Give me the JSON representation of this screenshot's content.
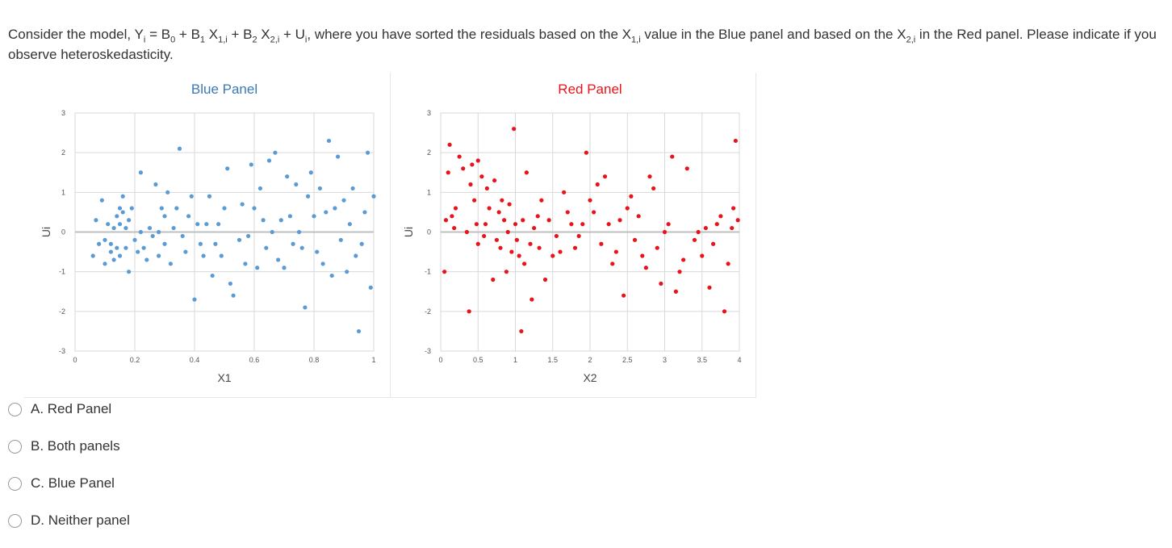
{
  "question": {
    "part1": "Consider the model, Y",
    "sub_i": "i",
    "part2": " = B",
    "sub_0": "0",
    "part3": " + B",
    "sub_1": "1",
    "part4": " X",
    "sub_1i": "1,i",
    "part5": " + B",
    "sub_2": "2",
    "part6": " X",
    "sub_2i": "2,i",
    "part7": " + U",
    "sub_i2": "i",
    "part8": ", where you have sorted the residuals based on the X",
    "sub_1i_b": "1,i",
    "part9": " value in the Blue panel and based on the X",
    "sub_2i_b": "2,i",
    "part10": " in the Red panel. Please indicate if you observe heteroskedasticity."
  },
  "options": [
    {
      "label": "A. Red Panel"
    },
    {
      "label": "B. Both panels"
    },
    {
      "label": "C. Blue Panel"
    },
    {
      "label": "D. Neither panel"
    }
  ],
  "colors": {
    "blue": "#5b9bd5",
    "red": "#e8131b",
    "blue_title": "#3c78b4",
    "red_title": "#e8131b",
    "grid": "#d9d9d9",
    "zero_line": "#bfbfbf"
  },
  "chart_data": [
    {
      "type": "scatter",
      "title": "Blue Panel",
      "xlabel": "X1",
      "ylabel": "Ui",
      "xlim": [
        0,
        1
      ],
      "ylim": [
        -3,
        3
      ],
      "xticks": [
        "0",
        "0.2",
        "0.4",
        "0.6",
        "0.8",
        "1"
      ],
      "yticks": [
        "-3",
        "-2",
        "-1",
        "0",
        "1",
        "2",
        "3"
      ],
      "grid": true,
      "color": "#5b9bd5",
      "x": [
        0.06,
        0.07,
        0.08,
        0.09,
        0.1,
        0.1,
        0.11,
        0.12,
        0.12,
        0.13,
        0.13,
        0.14,
        0.14,
        0.15,
        0.15,
        0.15,
        0.16,
        0.16,
        0.17,
        0.17,
        0.18,
        0.18,
        0.19,
        0.2,
        0.21,
        0.22,
        0.22,
        0.23,
        0.24,
        0.25,
        0.26,
        0.27,
        0.28,
        0.28,
        0.29,
        0.3,
        0.3,
        0.31,
        0.32,
        0.33,
        0.34,
        0.35,
        0.36,
        0.37,
        0.38,
        0.39,
        0.4,
        0.41,
        0.42,
        0.43,
        0.44,
        0.45,
        0.46,
        0.47,
        0.48,
        0.49,
        0.5,
        0.51,
        0.52,
        0.53,
        0.55,
        0.56,
        0.57,
        0.58,
        0.59,
        0.6,
        0.61,
        0.62,
        0.63,
        0.64,
        0.65,
        0.66,
        0.67,
        0.68,
        0.69,
        0.7,
        0.71,
        0.72,
        0.73,
        0.74,
        0.75,
        0.76,
        0.77,
        0.78,
        0.79,
        0.8,
        0.81,
        0.82,
        0.83,
        0.84,
        0.85,
        0.86,
        0.87,
        0.88,
        0.89,
        0.9,
        0.91,
        0.92,
        0.93,
        0.94,
        0.95,
        0.96,
        0.97,
        0.98,
        0.99,
        1.0
      ],
      "y": [
        -0.6,
        0.3,
        -0.3,
        0.8,
        -0.2,
        -0.8,
        0.2,
        -0.5,
        -0.3,
        0.1,
        -0.7,
        0.4,
        -0.4,
        0.2,
        0.6,
        -0.6,
        0.9,
        0.5,
        -0.4,
        0.1,
        0.3,
        -1.0,
        0.6,
        -0.2,
        -0.5,
        1.5,
        0.0,
        -0.4,
        -0.7,
        0.1,
        -0.1,
        1.2,
        -0.6,
        0.0,
        0.6,
        0.4,
        -0.3,
        1.0,
        -0.8,
        0.1,
        0.6,
        2.1,
        -0.1,
        -0.5,
        0.4,
        0.9,
        -1.7,
        0.2,
        -0.3,
        -0.6,
        0.2,
        0.9,
        -1.1,
        -0.3,
        0.2,
        -0.6,
        0.6,
        1.6,
        -1.3,
        -1.6,
        -0.2,
        0.7,
        -0.8,
        -0.1,
        1.7,
        0.6,
        -0.9,
        1.1,
        0.3,
        -0.4,
        1.8,
        0.0,
        2.0,
        -0.7,
        0.3,
        -0.9,
        1.4,
        0.4,
        -0.3,
        1.2,
        0.0,
        -0.4,
        -1.9,
        0.9,
        1.5,
        0.4,
        -0.5,
        1.1,
        -0.8,
        0.5,
        2.3,
        -1.1,
        0.6,
        1.9,
        -0.2,
        0.8,
        -1.0,
        0.2,
        1.1,
        -0.6,
        -2.5,
        -0.3,
        0.5,
        2.0,
        -1.4,
        0.9
      ]
    },
    {
      "type": "scatter",
      "title": "Red Panel",
      "xlabel": "X2",
      "ylabel": "Ui",
      "xlim": [
        0,
        4
      ],
      "ylim": [
        -3,
        3
      ],
      "xticks": [
        "0",
        "0.5",
        "1",
        "1.5",
        "2",
        "2.5",
        "3",
        "3.5",
        "4"
      ],
      "yticks": [
        "-3",
        "-2",
        "-1",
        "0",
        "1",
        "2",
        "3"
      ],
      "grid": true,
      "color": "#e8131b",
      "x": [
        0.05,
        0.07,
        0.1,
        0.12,
        0.15,
        0.18,
        0.2,
        0.25,
        0.3,
        0.35,
        0.38,
        0.4,
        0.42,
        0.45,
        0.48,
        0.5,
        0.5,
        0.55,
        0.58,
        0.6,
        0.62,
        0.65,
        0.7,
        0.72,
        0.75,
        0.78,
        0.8,
        0.82,
        0.85,
        0.88,
        0.9,
        0.92,
        0.95,
        0.98,
        1.0,
        1.02,
        1.05,
        1.08,
        1.1,
        1.12,
        1.15,
        1.2,
        1.22,
        1.25,
        1.3,
        1.32,
        1.35,
        1.4,
        1.45,
        1.5,
        1.55,
        1.6,
        1.65,
        1.7,
        1.75,
        1.8,
        1.85,
        1.9,
        1.95,
        2.0,
        2.05,
        2.1,
        2.15,
        2.2,
        2.25,
        2.3,
        2.35,
        2.4,
        2.45,
        2.5,
        2.55,
        2.6,
        2.65,
        2.7,
        2.75,
        2.8,
        2.85,
        2.9,
        2.95,
        3.0,
        3.05,
        3.1,
        3.15,
        3.2,
        3.25,
        3.3,
        3.4,
        3.45,
        3.5,
        3.55,
        3.6,
        3.65,
        3.7,
        3.75,
        3.8,
        3.85,
        3.9,
        3.92,
        3.95,
        3.98
      ],
      "y": [
        -1.0,
        0.3,
        1.5,
        2.2,
        0.4,
        0.1,
        0.6,
        1.9,
        1.6,
        0.0,
        -2.0,
        1.2,
        1.7,
        0.8,
        0.2,
        -0.3,
        1.8,
        1.4,
        -0.1,
        0.2,
        1.1,
        0.6,
        -1.2,
        1.3,
        -0.2,
        0.5,
        -0.4,
        0.8,
        0.3,
        -1.0,
        0.0,
        0.7,
        -0.5,
        2.6,
        0.2,
        -0.2,
        -0.6,
        -2.5,
        0.3,
        -0.8,
        1.5,
        -0.3,
        -1.7,
        0.1,
        0.4,
        -0.4,
        0.8,
        -1.2,
        0.3,
        -0.6,
        -0.1,
        -0.5,
        1.0,
        0.5,
        0.2,
        -0.4,
        -0.1,
        0.2,
        2.0,
        0.8,
        0.5,
        1.2,
        -0.3,
        1.4,
        0.2,
        -0.8,
        -0.5,
        0.3,
        -1.6,
        0.6,
        0.9,
        -0.2,
        0.4,
        -0.6,
        -0.9,
        1.4,
        1.1,
        -0.4,
        -1.3,
        0.0,
        0.2,
        1.9,
        -1.5,
        -1.0,
        -0.7,
        1.6,
        -0.2,
        0.0,
        -0.6,
        0.1,
        -1.4,
        -0.3,
        0.2,
        0.4,
        -2.0,
        -0.8,
        0.1,
        0.6,
        2.3,
        0.3
      ]
    }
  ]
}
